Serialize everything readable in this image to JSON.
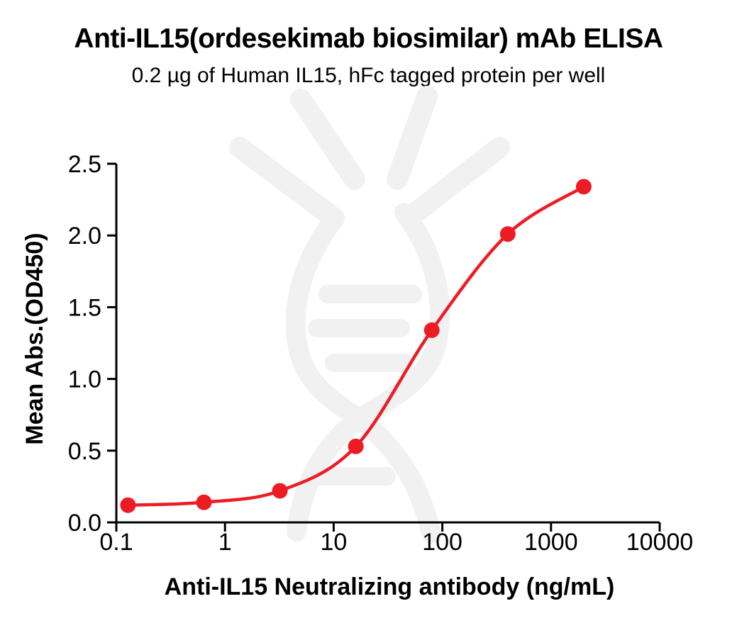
{
  "chart_data": {
    "type": "scatter",
    "subtype": "dose-response-sigmoid-line",
    "title": "Anti-IL15(ordesekimab biosimilar) mAb ELISA",
    "subtitle": "0.2 µg of Human IL15, hFc tagged protein per well",
    "xlabel": "Anti-IL15 Neutralizing antibody (ng/mL)",
    "ylabel": "Mean Abs.(OD450)",
    "x_scale": "log10",
    "xlim": [
      0.1,
      10000
    ],
    "ylim": [
      0,
      2.5
    ],
    "grid": false,
    "legend": false,
    "axis_color": "#000000",
    "background_color": "#ffffff",
    "watermark_icon": "antibody-dna-helix-logo",
    "watermark_color": "#f1f1f1",
    "x_ticks": [
      {
        "value": 0.1,
        "label": "0.1"
      },
      {
        "value": 1,
        "label": "1"
      },
      {
        "value": 10,
        "label": "10"
      },
      {
        "value": 100,
        "label": "100"
      },
      {
        "value": 1000,
        "label": "1000"
      },
      {
        "value": 10000,
        "label": "10000"
      }
    ],
    "y_ticks": [
      {
        "value": 0.0,
        "label": "0.0"
      },
      {
        "value": 0.5,
        "label": "0.5"
      },
      {
        "value": 1.0,
        "label": "1.0"
      },
      {
        "value": 1.5,
        "label": "1.5"
      },
      {
        "value": 2.0,
        "label": "2.0"
      },
      {
        "value": 2.5,
        "label": "2.5"
      }
    ],
    "series": [
      {
        "name": "Anti-IL15 neutralizing antibody",
        "marker": "filled-circle",
        "color": "#ed1c24",
        "x": [
          0.128,
          0.64,
          3.2,
          16,
          80,
          400,
          2000
        ],
        "y": [
          0.12,
          0.14,
          0.22,
          0.53,
          1.34,
          2.01,
          2.34
        ]
      }
    ]
  }
}
